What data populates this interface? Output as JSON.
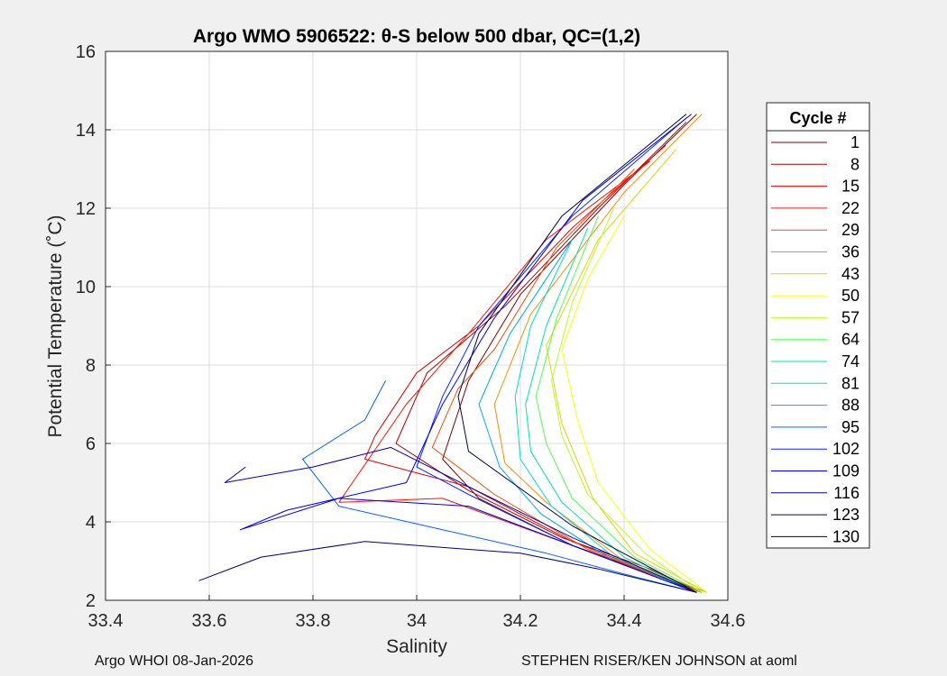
{
  "chart_data": {
    "type": "line",
    "title": "Argo WMO 5906522: θ-S below 500 dbar,  QC=(1,2)",
    "xlabel": "Salinity",
    "ylabel": "Potential Temperature (˚C)",
    "xlim": [
      33.4,
      34.6
    ],
    "ylim": [
      2,
      16
    ],
    "xticks": [
      "33.4",
      "33.6",
      "33.8",
      "34",
      "34.2",
      "34.4",
      "34.6"
    ],
    "yticks": [
      "2",
      "4",
      "6",
      "8",
      "10",
      "12",
      "14",
      "16"
    ],
    "grid": true,
    "legend_position": "right",
    "legend_title": "Cycle #",
    "series": [
      {
        "name": "1",
        "color": "#800000",
        "x": [
          34.54,
          34.4,
          34.2,
          34.1,
          34.05,
          34.12,
          34.3,
          34.45,
          34.55
        ],
        "y": [
          14.4,
          12.6,
          9.8,
          7.6,
          5.6,
          4.6,
          3.4,
          2.7,
          2.2
        ]
      },
      {
        "name": "8",
        "color": "#b00000",
        "x": [
          34.52,
          34.35,
          34.17,
          34.02,
          33.96,
          34.1,
          34.28,
          34.45,
          34.55
        ],
        "y": [
          14.2,
          12.0,
          9.5,
          7.8,
          6.0,
          4.8,
          3.6,
          2.8,
          2.2
        ]
      },
      {
        "name": "15",
        "color": "#e00000",
        "x": [
          34.48,
          34.3,
          34.12,
          34.0,
          33.92,
          33.9,
          34.1,
          34.3,
          34.55
        ],
        "y": [
          13.6,
          11.5,
          9.0,
          7.8,
          6.2,
          5.6,
          4.9,
          3.5,
          2.2
        ]
      },
      {
        "name": "22",
        "color": "#ff1500",
        "x": [
          34.45,
          34.25,
          34.1,
          33.98,
          33.85,
          34.05,
          34.3,
          34.55
        ],
        "y": [
          13.2,
          11.2,
          8.8,
          7.0,
          4.5,
          4.6,
          3.4,
          2.2
        ]
      },
      {
        "name": "29",
        "color": "#ff4a00",
        "x": [
          34.42,
          34.27,
          34.15,
          34.08,
          34.03,
          34.15,
          34.33,
          34.55
        ],
        "y": [
          13.0,
          11.0,
          8.4,
          7.4,
          5.9,
          4.7,
          3.3,
          2.2
        ]
      },
      {
        "name": "36",
        "color": "#ff8c00",
        "x": [
          34.55,
          34.4,
          34.22,
          34.15,
          34.17,
          34.25,
          34.4,
          34.56
        ],
        "y": [
          14.4,
          12.4,
          9.3,
          7.0,
          5.5,
          4.5,
          3.0,
          2.2
        ]
      },
      {
        "name": "43",
        "color": "#e6d200",
        "x": [
          34.5,
          34.35,
          34.25,
          34.28,
          34.34,
          34.42,
          34.56
        ],
        "y": [
          13.5,
          11.2,
          8.5,
          6.5,
          4.6,
          3.2,
          2.2
        ]
      },
      {
        "name": "50",
        "color": "#ffff00",
        "x": [
          34.4,
          34.33,
          34.28,
          34.31,
          34.35,
          34.45,
          34.56
        ],
        "y": [
          11.8,
          10.2,
          8.4,
          6.6,
          5.0,
          3.3,
          2.2
        ]
      },
      {
        "name": "57",
        "color": "#b4ff28",
        "x": [
          34.38,
          34.3,
          34.26,
          34.28,
          34.33,
          34.44,
          34.55
        ],
        "y": [
          12.0,
          9.6,
          7.6,
          6.2,
          4.7,
          3.2,
          2.2
        ]
      },
      {
        "name": "64",
        "color": "#50ff50",
        "x": [
          34.35,
          34.27,
          34.23,
          34.25,
          34.3,
          34.42,
          34.55
        ],
        "y": [
          11.8,
          9.2,
          7.2,
          6.0,
          4.6,
          3.1,
          2.2
        ]
      },
      {
        "name": "74",
        "color": "#00e6a0",
        "x": [
          34.33,
          34.25,
          34.21,
          34.22,
          34.28,
          34.4,
          34.54
        ],
        "y": [
          11.5,
          9.0,
          7.0,
          5.8,
          4.5,
          3.1,
          2.2
        ]
      },
      {
        "name": "81",
        "color": "#00d8d8",
        "x": [
          34.3,
          34.22,
          34.19,
          34.2,
          34.26,
          34.38,
          34.54
        ],
        "y": [
          11.2,
          9.0,
          7.2,
          5.6,
          4.4,
          3.1,
          2.2
        ]
      },
      {
        "name": "88",
        "color": "#00a8ff",
        "x": [
          34.3,
          34.18,
          34.12,
          34.16,
          34.24,
          34.38,
          34.54
        ],
        "y": [
          11.2,
          8.8,
          7.0,
          5.4,
          4.2,
          3.0,
          2.2
        ]
      },
      {
        "name": "95",
        "color": "#0064ff",
        "x": [
          33.94,
          33.9,
          33.78,
          33.85,
          34.05,
          34.25,
          34.42,
          34.54
        ],
        "y": [
          7.6,
          6.6,
          5.6,
          4.4,
          3.8,
          3.2,
          2.6,
          2.2
        ]
      },
      {
        "name": "102",
        "color": "#0028ff",
        "x": [
          34.52,
          34.3,
          34.12,
          34.05,
          34.0,
          34.1,
          34.3,
          34.54
        ],
        "y": [
          14.3,
          11.8,
          9.0,
          7.2,
          5.4,
          4.7,
          3.4,
          2.2
        ]
      },
      {
        "name": "109",
        "color": "#0000e6",
        "x": [
          34.53,
          34.32,
          34.15,
          34.05,
          33.98,
          33.75,
          33.66,
          33.85,
          34.1,
          34.3,
          34.54
        ],
        "y": [
          14.4,
          12.2,
          9.2,
          7.0,
          5.0,
          4.3,
          3.8,
          4.6,
          4.4,
          3.4,
          2.2
        ]
      },
      {
        "name": "116",
        "color": "#0000aa",
        "x": [
          33.67,
          33.63,
          33.8,
          33.95,
          34.1,
          34.3,
          34.54
        ],
        "y": [
          5.4,
          5.0,
          5.4,
          5.9,
          4.9,
          3.6,
          2.2
        ]
      },
      {
        "name": "123",
        "color": "#000078",
        "x": [
          33.58,
          33.7,
          33.9,
          34.1,
          34.2,
          34.35,
          34.54
        ],
        "y": [
          2.5,
          3.1,
          3.5,
          3.3,
          3.2,
          2.8,
          2.2
        ]
      },
      {
        "name": "130",
        "color": "#00004a",
        "x": [
          34.52,
          34.28,
          34.12,
          34.08,
          34.1,
          34.3,
          34.54
        ],
        "y": [
          14.4,
          11.8,
          8.8,
          7.2,
          5.8,
          3.9,
          2.2
        ]
      }
    ]
  },
  "footer": {
    "left": "Argo WHOI 08-Jan-2026",
    "right": "STEPHEN RISER/KEN JOHNSON at aoml"
  }
}
